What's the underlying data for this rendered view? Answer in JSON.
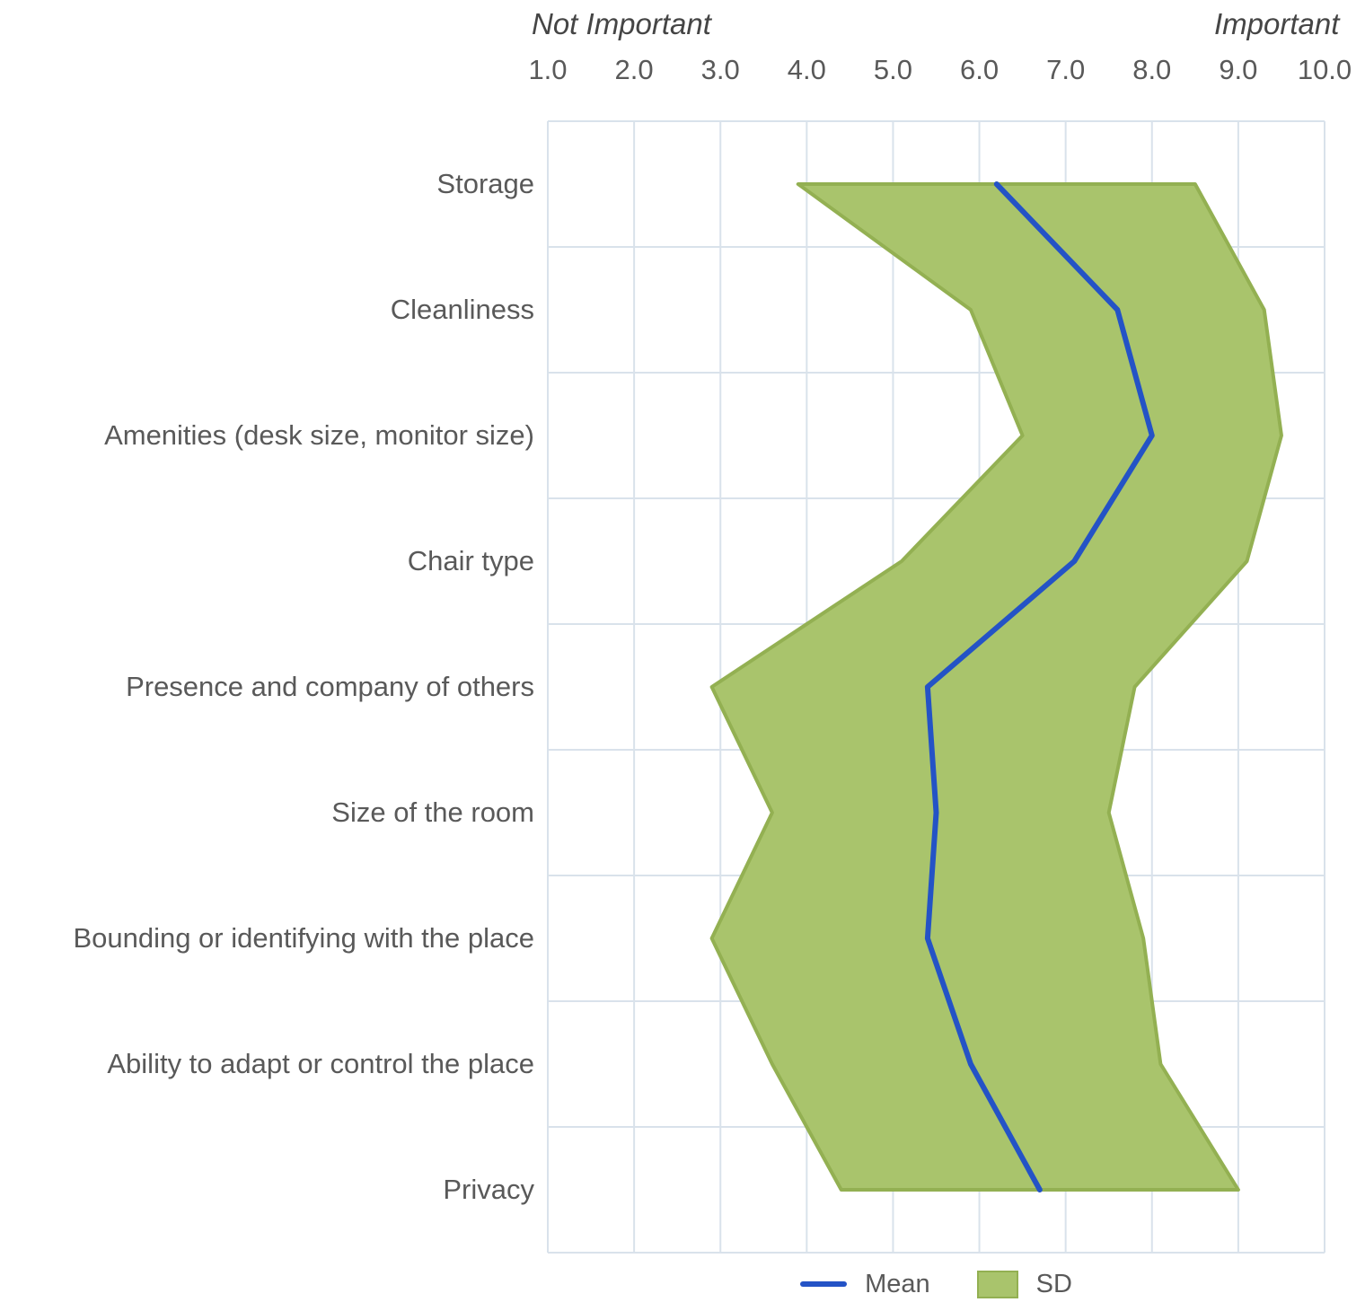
{
  "colors": {
    "mean_line": "#2453c6",
    "band_fill": "#a9c46c",
    "band_stroke": "#93b052",
    "grid": "#d9e2eb",
    "text": "#595959",
    "endpoint_text": "#454545",
    "background": "#ffffff"
  },
  "chart_data": {
    "type": "line",
    "title": "",
    "orientation": "horizontal-categories",
    "grid": true,
    "legend_position": "bottom",
    "x_axis": {
      "position": "top",
      "range": [
        1,
        10
      ],
      "ticks": [
        1,
        2,
        3,
        4,
        5,
        6,
        7,
        8,
        9,
        10
      ],
      "tick_labels": [
        "1.0",
        "2.0",
        "3.0",
        "4.0",
        "5.0",
        "6.0",
        "7.0",
        "8.0",
        "9.0",
        "10.0"
      ],
      "left_endpoint_label": "Not Important",
      "right_endpoint_label": "Important"
    },
    "categories": [
      "Storage",
      "Cleanliness",
      "Amenities (desk size, monitor size)",
      "Chair type",
      "Presence and company of others",
      "Size of the room",
      "Bounding or identifying with the place",
      "Ability to adapt or control the place",
      "Privacy"
    ],
    "series": [
      {
        "name": "Mean",
        "type": "line",
        "color": "#2453c6",
        "values": [
          6.2,
          7.6,
          8.0,
          7.1,
          5.4,
          5.5,
          5.4,
          5.9,
          6.7
        ]
      },
      {
        "name": "SD",
        "type": "band",
        "color": "#a9c46c",
        "lower": [
          3.9,
          5.9,
          6.5,
          5.1,
          2.9,
          3.6,
          2.9,
          3.6,
          4.4
        ],
        "upper": [
          8.5,
          9.3,
          9.5,
          9.1,
          7.8,
          7.5,
          7.9,
          8.1,
          9.0
        ]
      }
    ]
  }
}
